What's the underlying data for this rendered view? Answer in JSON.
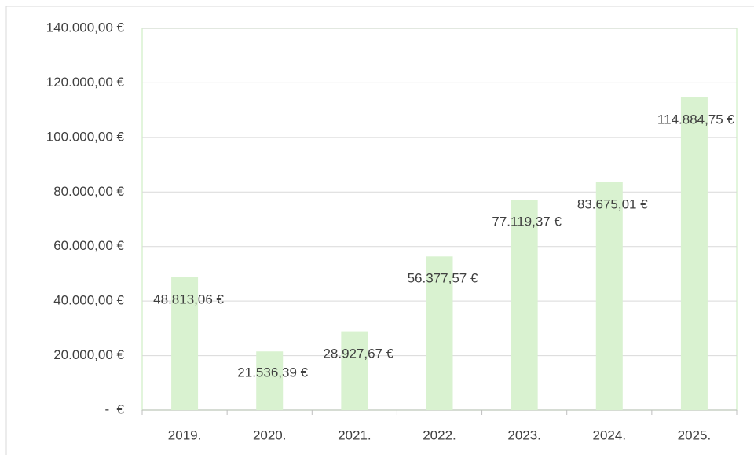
{
  "chart_data": {
    "type": "bar",
    "categories": [
      "2019.",
      "2020.",
      "2021.",
      "2022.",
      "2023.",
      "2024.",
      "2025."
    ],
    "values": [
      48813.06,
      21536.39,
      28927.67,
      56377.57,
      77119.37,
      83675.01,
      114884.75
    ],
    "value_labels": [
      "48.813,06 €",
      "21.536,39 €",
      "28.927,67 €",
      "56.377,57 €",
      "77.119,37 €",
      "83.675,01 €",
      "114.884,75 €"
    ],
    "color": "#d9f2d0",
    "ylim": [
      0,
      140000
    ],
    "yticks": [
      {
        "value": 0,
        "label": "-  €"
      },
      {
        "value": 20000,
        "label": "20.000,00 €"
      },
      {
        "value": 40000,
        "label": "40.000,00 €"
      },
      {
        "value": 60000,
        "label": "60.000,00 €"
      },
      {
        "value": 80000,
        "label": "80.000,00 €"
      },
      {
        "value": 100000,
        "label": "100.000,00 €"
      },
      {
        "value": 120000,
        "label": "120.000,00 €"
      },
      {
        "value": 140000,
        "label": "140.000,00 €"
      }
    ],
    "grid": true
  }
}
